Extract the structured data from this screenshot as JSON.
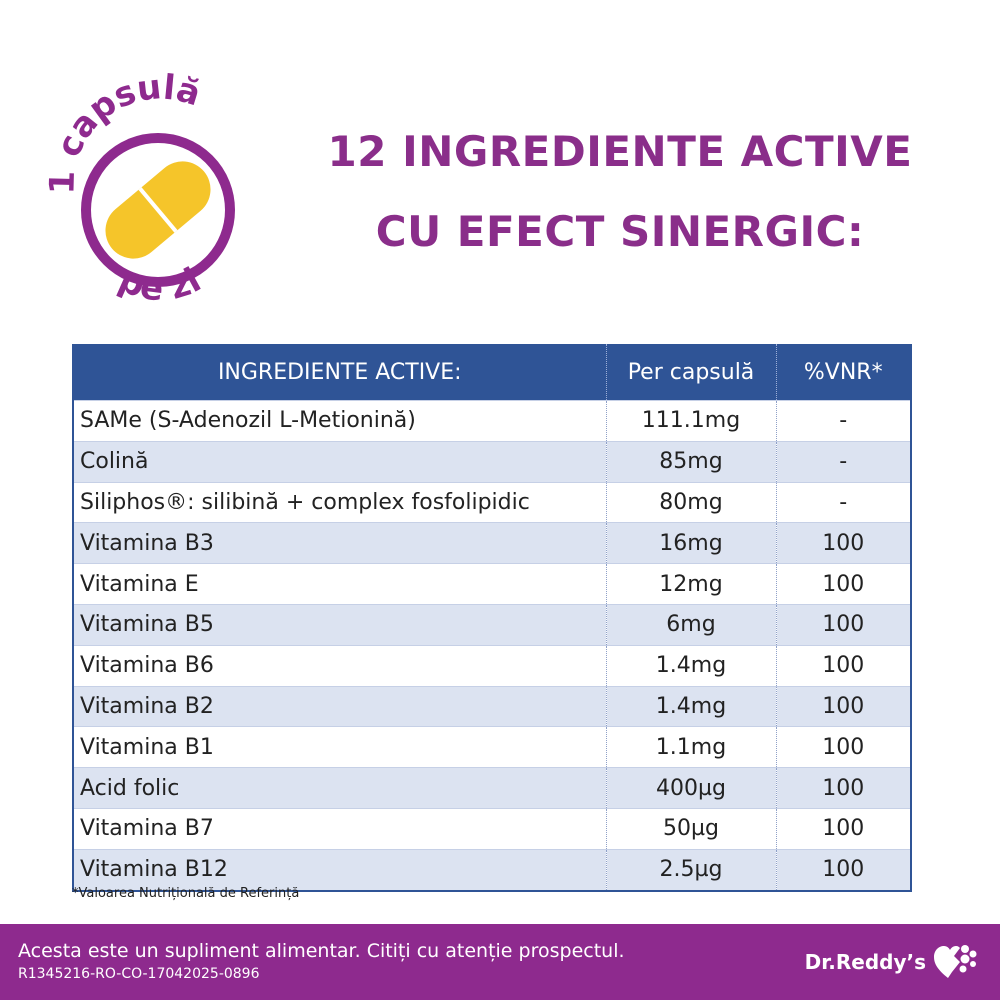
{
  "badge": {
    "top_text": "1 capsulă",
    "bottom_text": "pe zi",
    "icon": "capsule-icon",
    "colors": {
      "ring": "#8e2a8e",
      "capsule": "#f5c52a"
    }
  },
  "headline": {
    "line1": "12 INGREDIENTE ACTIVE",
    "line2": "CU EFECT SINERGIC:"
  },
  "table": {
    "headers": [
      "INGREDIENTE ACTIVE:",
      "Per capsulă",
      "%VNR*"
    ],
    "rows": [
      {
        "name": "SAMe (S-Adenozil L-Metionină)",
        "per": "111.1mg",
        "vnr": "-"
      },
      {
        "name": "Colină",
        "per": "85mg",
        "vnr": "-"
      },
      {
        "name": "Siliphos®: silibină + complex fosfolipidic",
        "per": "80mg",
        "vnr": "-"
      },
      {
        "name": "Vitamina B3",
        "per": "16mg",
        "vnr": "100"
      },
      {
        "name": "Vitamina E",
        "per": "12mg",
        "vnr": "100"
      },
      {
        "name": "Vitamina B5",
        "per": "6mg",
        "vnr": "100"
      },
      {
        "name": "Vitamina B6",
        "per": "1.4mg",
        "vnr": "100"
      },
      {
        "name": "Vitamina B2",
        "per": "1.4mg",
        "vnr": "100"
      },
      {
        "name": "Vitamina B1",
        "per": "1.1mg",
        "vnr": "100"
      },
      {
        "name": "Acid folic",
        "per": "400µg",
        "vnr": "100"
      },
      {
        "name": "Vitamina B7",
        "per": "50µg",
        "vnr": "100"
      },
      {
        "name": "Vitamina B12",
        "per": "2.5µg",
        "vnr": "100"
      }
    ]
  },
  "footnote": "*Valoarea Nutrițională de Referință",
  "footer": {
    "line1": "Acesta este un supliment alimentar. Citiți cu atenție prospectul.",
    "line2": "R1345216-RO-CO-17042025-0896",
    "brand": "Dr.Reddy’s",
    "brand_icon": "heart-dots-logo-icon"
  },
  "colors": {
    "accent": "#8e2a8e",
    "table_header": "#2f5496",
    "row_alt": "#dce3f1"
  }
}
